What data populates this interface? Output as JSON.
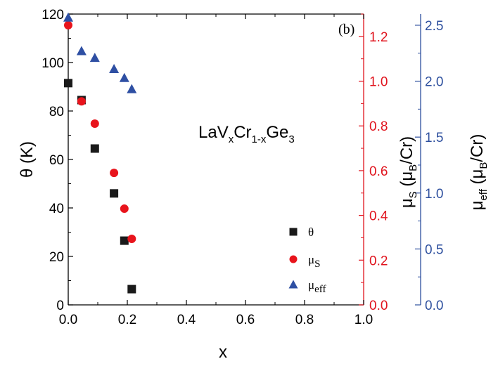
{
  "chart_data": {
    "type": "scatter",
    "panel_label": "(b)",
    "annotation": {
      "base": "LaV",
      "s1": "x",
      "mid": "Cr",
      "s2": "1-x",
      "end": "Ge",
      "s3": "3"
    },
    "x_axis": {
      "label": "x",
      "lim": [
        0.0,
        1.0
      ],
      "ticks": [
        "0.0",
        "0.2",
        "0.4",
        "0.6",
        "0.8",
        "1.0"
      ],
      "tick_values": [
        0.0,
        0.2,
        0.4,
        0.6,
        0.8,
        1.0
      ],
      "color": "#000000"
    },
    "y_left": {
      "label": "θ (K)",
      "lim": [
        0,
        120
      ],
      "ticks": [
        "0",
        "20",
        "40",
        "60",
        "80",
        "100",
        "120"
      ],
      "tick_values": [
        0,
        20,
        40,
        60,
        80,
        100,
        120
      ],
      "color": "#000000"
    },
    "y_right1": {
      "label_main": "μ",
      "label_sub": "S",
      "label_paren": " (μ",
      "label_sub2": "B",
      "label_end": "/Cr)",
      "lim": [
        0.0,
        1.3
      ],
      "ticks": [
        "0.0",
        "0.2",
        "0.4",
        "0.6",
        "0.8",
        "1.0",
        "1.2"
      ],
      "tick_values": [
        0.0,
        0.2,
        0.4,
        0.6,
        0.8,
        1.0,
        1.2
      ],
      "color": "#e0141e"
    },
    "y_right2": {
      "label_main": "μ",
      "label_sub": "eff",
      "label_paren": " (μ",
      "label_sub2": "B",
      "label_end": "/Cr)",
      "lim": [
        0.0,
        2.6
      ],
      "ticks": [
        "0.0",
        "0.5",
        "1.0",
        "1.5",
        "2.0",
        "2.5"
      ],
      "tick_values": [
        0.0,
        0.5,
        1.0,
        1.5,
        2.0,
        2.5
      ],
      "color": "#2d4f9e"
    },
    "series": [
      {
        "name": "θ",
        "axis": "y_left",
        "marker": "square",
        "color": "#1a1a1a",
        "x": [
          0.0,
          0.045,
          0.09,
          0.155,
          0.19,
          0.215
        ],
        "y": [
          91.5,
          84.5,
          64.5,
          46,
          26.5,
          6.5
        ]
      },
      {
        "name": "μS",
        "legend_main": "μ",
        "legend_sub": "S",
        "axis": "y_right1",
        "marker": "circle",
        "color": "#e8141c",
        "x": [
          0.0,
          0.045,
          0.09,
          0.155,
          0.19,
          0.215
        ],
        "y": [
          1.25,
          0.91,
          0.81,
          0.59,
          0.43,
          0.295
        ]
      },
      {
        "name": "μeff",
        "legend_main": "μ",
        "legend_sub": "eff",
        "axis": "y_right2",
        "marker": "triangle",
        "color": "#2e4fa3",
        "x": [
          0.0,
          0.045,
          0.09,
          0.155,
          0.19,
          0.215
        ],
        "y": [
          2.57,
          2.27,
          2.21,
          2.11,
          2.03,
          1.93
        ]
      }
    ]
  }
}
